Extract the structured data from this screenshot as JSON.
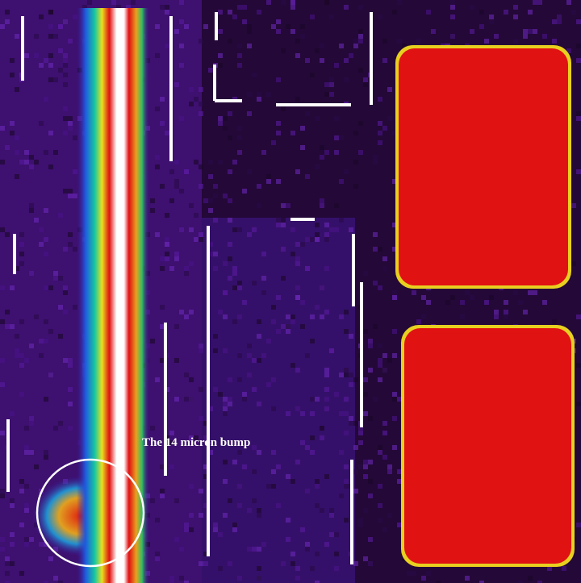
{
  "annotation": {
    "label": "The 14 micron bump"
  }
}
